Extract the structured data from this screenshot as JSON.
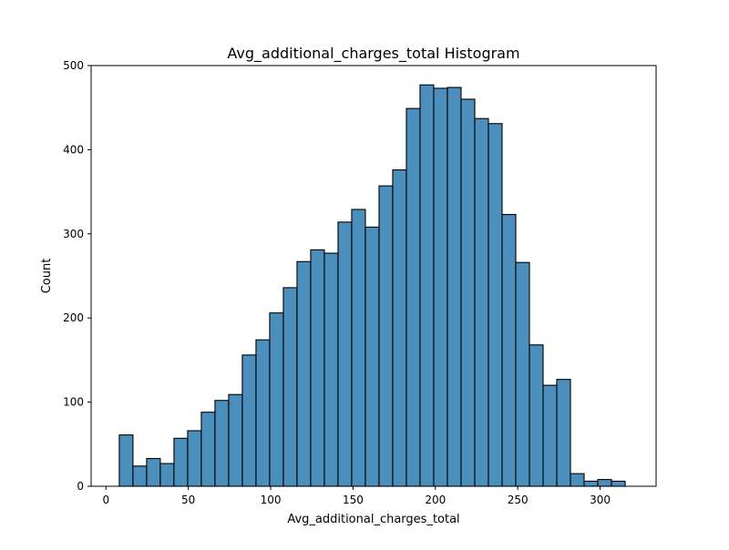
{
  "chart_data": {
    "type": "bar",
    "title": "Avg_additional_charges_total Histogram",
    "xlabel": "Avg_additional_charges_total",
    "ylabel": "Count",
    "xlim": [
      -9,
      334
    ],
    "ylim": [
      0,
      500
    ],
    "x_ticks": [
      0,
      50,
      100,
      150,
      200,
      250,
      300
    ],
    "y_ticks": [
      0,
      100,
      200,
      300,
      400,
      500
    ],
    "bin_width": 8.3,
    "bin_start": 8.1,
    "values": [
      61,
      24,
      33,
      27,
      57,
      66,
      88,
      102,
      109,
      156,
      174,
      206,
      236,
      267,
      281,
      277,
      314,
      329,
      308,
      357,
      376,
      449,
      477,
      473,
      474,
      460,
      437,
      431,
      323,
      266,
      168,
      120,
      127,
      15,
      6,
      8,
      6
    ],
    "bar_color": "#4c8fbd",
    "grid": false,
    "legend": "none"
  }
}
